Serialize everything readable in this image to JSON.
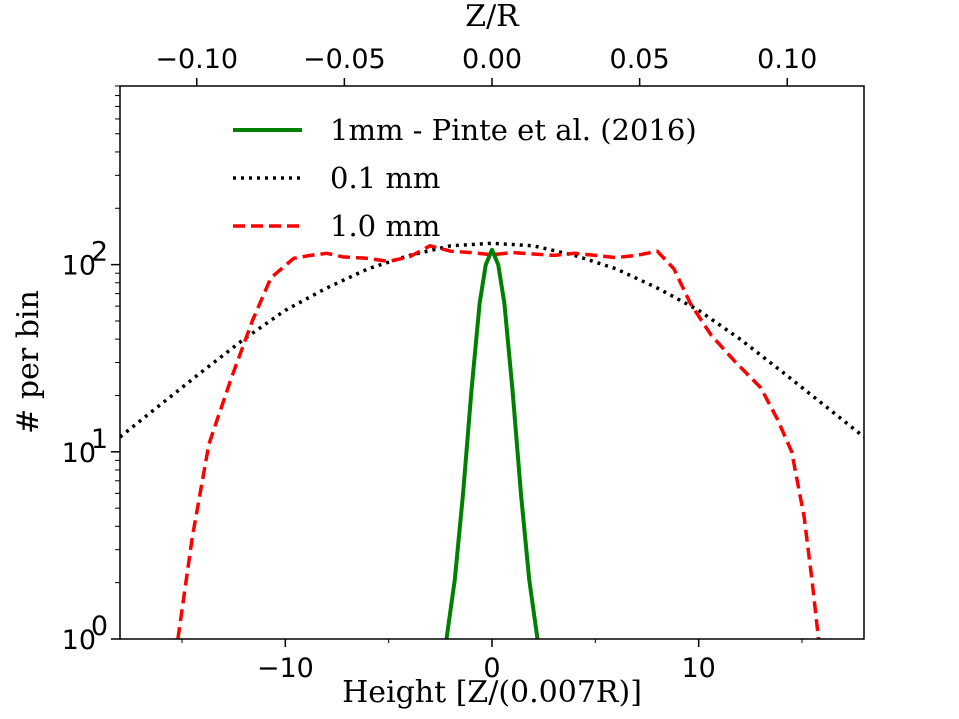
{
  "chart_data": {
    "type": "line",
    "xlabel": "Height [Z/(0.007R)]",
    "ylabel": "# per bin",
    "top_xlabel": "Z/R",
    "yscale": "log",
    "xlim": [
      -18,
      18
    ],
    "ylim": [
      1,
      900
    ],
    "top_xlim": [
      -0.126,
      0.126
    ],
    "x_ticks": [
      -10,
      0,
      10
    ],
    "x_tick_labels": [
      "−10",
      "0",
      "10"
    ],
    "top_x_ticks": [
      -0.1,
      -0.05,
      0.0,
      0.05,
      0.1
    ],
    "top_x_tick_labels": [
      "−0.10",
      "−0.05",
      "0.00",
      "0.05",
      "0.10"
    ],
    "y_ticks": [
      1,
      10,
      100
    ],
    "y_tick_labels": [
      {
        "base": "10",
        "exp": "0"
      },
      {
        "base": "10",
        "exp": "1"
      },
      {
        "base": "10",
        "exp": "2"
      }
    ],
    "legend_position": "upper-center",
    "series": [
      {
        "name": "1mm - Pinte et al. (2016)",
        "color": "#008000",
        "style": "solid",
        "x": [
          -2.2,
          -1.8,
          -1.4,
          -1.0,
          -0.6,
          -0.3,
          0.0,
          0.3,
          0.6,
          1.0,
          1.4,
          1.8,
          2.2
        ],
        "y": [
          1.0,
          2.08,
          6.0,
          20.8,
          62.0,
          100,
          120,
          100,
          62.0,
          20.8,
          6.0,
          2.08,
          1.0
        ]
      },
      {
        "name": "0.1 mm",
        "color": "#000000",
        "style": "dotted",
        "x": [
          -18,
          -16,
          -14,
          -12,
          -10,
          -8,
          -6,
          -4,
          -2,
          0,
          2,
          4,
          6,
          8,
          10,
          12,
          14,
          16,
          18
        ],
        "y": [
          12,
          18,
          27,
          40,
          57,
          75,
          95,
          112,
          126,
          130,
          126,
          112,
          95,
          75,
          57,
          40,
          27,
          18,
          12
        ]
      },
      {
        "name": "1.0 mm",
        "color": "#ff0000",
        "style": "dashed",
        "x": [
          -15.2,
          -14.5,
          -13.7,
          -12.6,
          -11.6,
          -10.7,
          -9.6,
          -8.8,
          -8.0,
          -7.2,
          -6.0,
          -5.0,
          -4.0,
          -3.0,
          -2.0,
          -1.0,
          0.0,
          1.0,
          2.0,
          3.0,
          4.0,
          5.0,
          6.0,
          7.0,
          8.0,
          8.8,
          9.6,
          10.6,
          11.8,
          13.0,
          13.8,
          14.5,
          15.1,
          15.5,
          15.8
        ],
        "y": [
          1.0,
          3.5,
          11,
          25,
          50,
          85,
          108,
          112,
          115,
          110,
          108,
          104,
          110,
          126,
          118,
          116,
          113,
          116,
          114,
          112,
          115,
          112,
          109,
          112,
          118,
          95,
          62,
          42,
          30,
          22,
          15,
          10,
          4.5,
          2.0,
          1.0
        ]
      }
    ]
  }
}
